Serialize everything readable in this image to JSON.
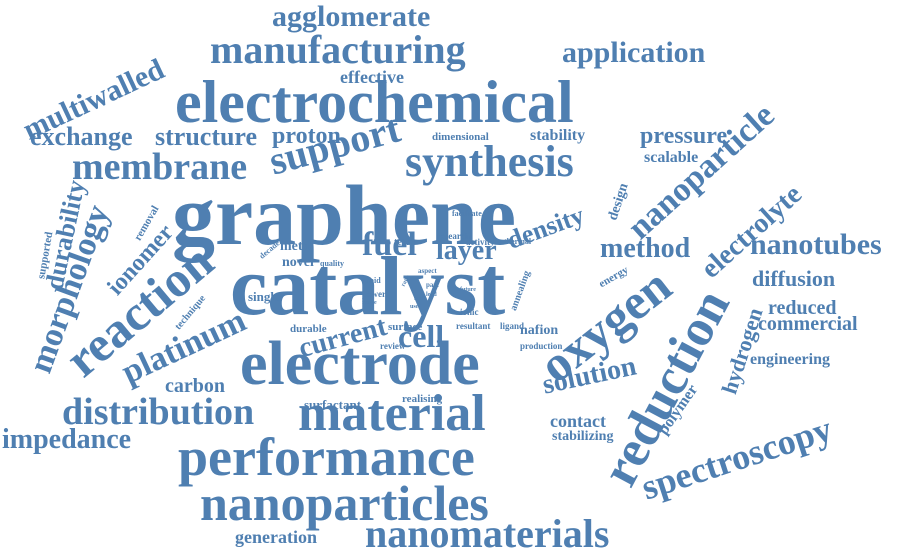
{
  "word_cloud": {
    "text_color": "#4f7fb1",
    "background_color": "#ffffff",
    "words": {
      "graphene": "graphene",
      "catalyst": "catalyst",
      "electrochemical": "electrochemical",
      "electrode": "electrode",
      "performance": "performance",
      "nanoparticles": "nanoparticles",
      "material": "material",
      "reduction": "reduction",
      "synthesis": "synthesis",
      "manufacturing": "manufacturing",
      "oxygen": "oxygen",
      "nanomaterials": "nanomaterials",
      "distribution": "distribution",
      "reaction": "reaction",
      "membrane": "membrane",
      "support": "support",
      "agglomerate": "agglomerate",
      "spectroscopy": "spectroscopy",
      "nanoparticle": "nanoparticle",
      "platinum": "platinum",
      "morphology": "morphology",
      "multiwalled": "multiwalled",
      "application": "application",
      "impedance": "impedance",
      "electrolyte": "electrolyte",
      "nanotubes": "nanotubes",
      "solution": "solution",
      "method": "method",
      "fuel": "fuel",
      "cell": "cell",
      "layer": "layer",
      "current": "current",
      "density": "density",
      "exchange": "exchange",
      "structure": "structure",
      "proton": "proton",
      "pressure": "pressure",
      "durability": "durability",
      "ionomer": "ionomer",
      "hydrogen": "hydrogen",
      "diffusion": "diffusion",
      "reduced": "reduced",
      "commercial": "commercial",
      "carbon": "carbon",
      "generation": "generation",
      "contact": "contact",
      "stabilizing": "stabilizing",
      "polymer": "polymer",
      "engineering": "engineering",
      "effective": "effective",
      "stability": "stability",
      "scalable": "scalable",
      "dimensional": "dimensional",
      "design": "design",
      "metal": "metal",
      "novel": "novel",
      "single": "single",
      "surfactant": "surfactant",
      "realising": "realising",
      "nafion": "nafion",
      "production": "production",
      "durable": "durable",
      "surface": "surface",
      "review": "review",
      "resultant": "resultant",
      "ligand": "ligand",
      "ionic": "ionic",
      "power": "power",
      "removal": "removal",
      "supported": "supported",
      "technique": "technique",
      "energy": "energy",
      "annealing": "annealing",
      "term": "term",
      "research": "research",
      "activity": "activity",
      "thermal": "thermal",
      "facilitate": "facilitate",
      "decade": "decade",
      "quality": "quality",
      "rapid": "rapid",
      "aspect": "aspect",
      "part": "part",
      "ratio": "ratio",
      "scale": "scale",
      "range": "range",
      "future": "future",
      "lead": "lead",
      "use": "use"
    }
  }
}
